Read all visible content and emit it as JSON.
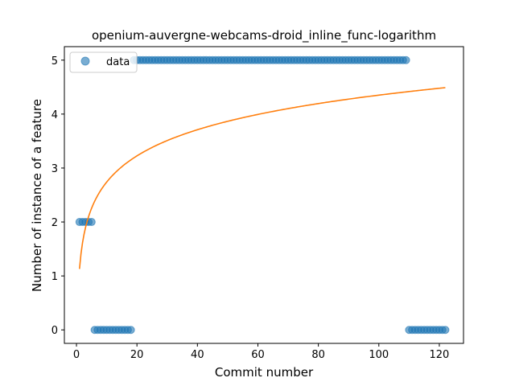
{
  "chart_data": {
    "type": "scatter",
    "title": "openium-auvergne-webcams-droid_inline_func-logarithm",
    "xlabel": "Commit number",
    "ylabel": "Number of instance of a feature",
    "xlim": [
      -4,
      128
    ],
    "ylim": [
      -0.25,
      5.25
    ],
    "xticks": [
      0,
      20,
      40,
      60,
      80,
      100,
      120
    ],
    "yticks": [
      0,
      1,
      2,
      3,
      4,
      5
    ],
    "grid": false,
    "legend_position": "top-left",
    "series": [
      {
        "name": "data",
        "kind": "scatter",
        "color": "#1f77b4",
        "opacity": 0.6,
        "segments": [
          {
            "x_start": 1,
            "x_end": 5,
            "y": 2
          },
          {
            "x_start": 6,
            "x_end": 18,
            "y": 0
          },
          {
            "x_start": 19,
            "x_end": 109,
            "y": 5
          },
          {
            "x_start": 110,
            "x_end": 122,
            "y": 0
          }
        ]
      },
      {
        "kind": "line",
        "color": "#ff7f0e",
        "fit": "logarithmic",
        "x_range": [
          1,
          122
        ],
        "y_at_start": 1.13,
        "y_at_end": 4.49
      }
    ]
  }
}
